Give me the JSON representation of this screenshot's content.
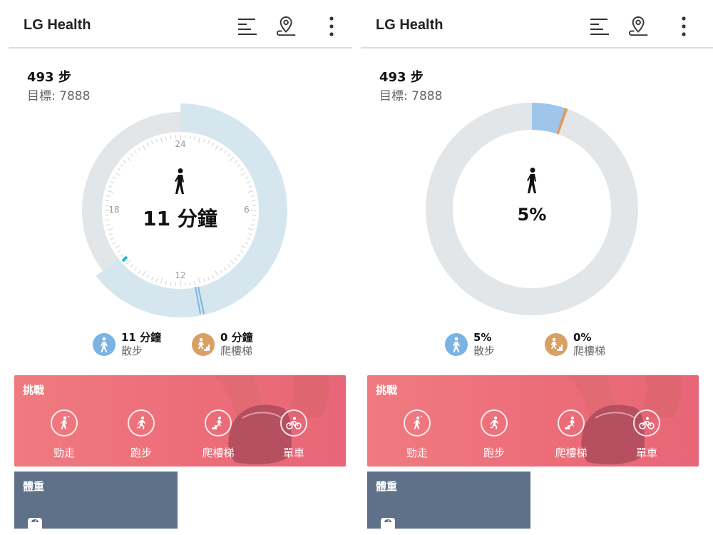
{
  "app": {
    "title": "LG Health"
  },
  "icons": {
    "list": "list-icon",
    "location": "location-pin-icon",
    "more": "more-vert-icon"
  },
  "steps": {
    "count": "493 步",
    "goal": "目標: 7888"
  },
  "left_panel": {
    "center_value": "11 分鐘",
    "clock_labels": {
      "top": "24",
      "right": "6",
      "bottom": "12",
      "left": "18"
    },
    "legend": [
      {
        "value": "11 分鐘",
        "name": "散步",
        "color": "#7bb3e3"
      },
      {
        "value": "0 分鐘",
        "name": "爬樓梯",
        "color": "#d9a064"
      }
    ]
  },
  "right_panel": {
    "center_value": "5%",
    "progress": {
      "walk_fraction": 0.05,
      "stairs_fraction": 0.005
    },
    "legend": [
      {
        "value": "5%",
        "name": "散步",
        "color": "#7bb3e3"
      },
      {
        "value": "0%",
        "name": "爬樓梯",
        "color": "#d9a064"
      }
    ]
  },
  "challenge": {
    "title": "挑戰",
    "items": [
      {
        "label": "勁走",
        "icon": "power-walk-icon"
      },
      {
        "label": "跑步",
        "icon": "running-icon"
      },
      {
        "label": "爬樓梯",
        "icon": "stairs-icon"
      },
      {
        "label": "單車",
        "icon": "cycling-icon"
      }
    ]
  },
  "weight": {
    "title": "體重",
    "icon": "scale-icon"
  },
  "colors": {
    "accent_blue": "#7bb3e3",
    "ring_light_blue": "#d5e6ef",
    "ring_gray": "#e3e6e8",
    "stairs_orange": "#d9a064",
    "challenge_pink": "#ec6d78",
    "weight_slate": "#5e7189"
  }
}
